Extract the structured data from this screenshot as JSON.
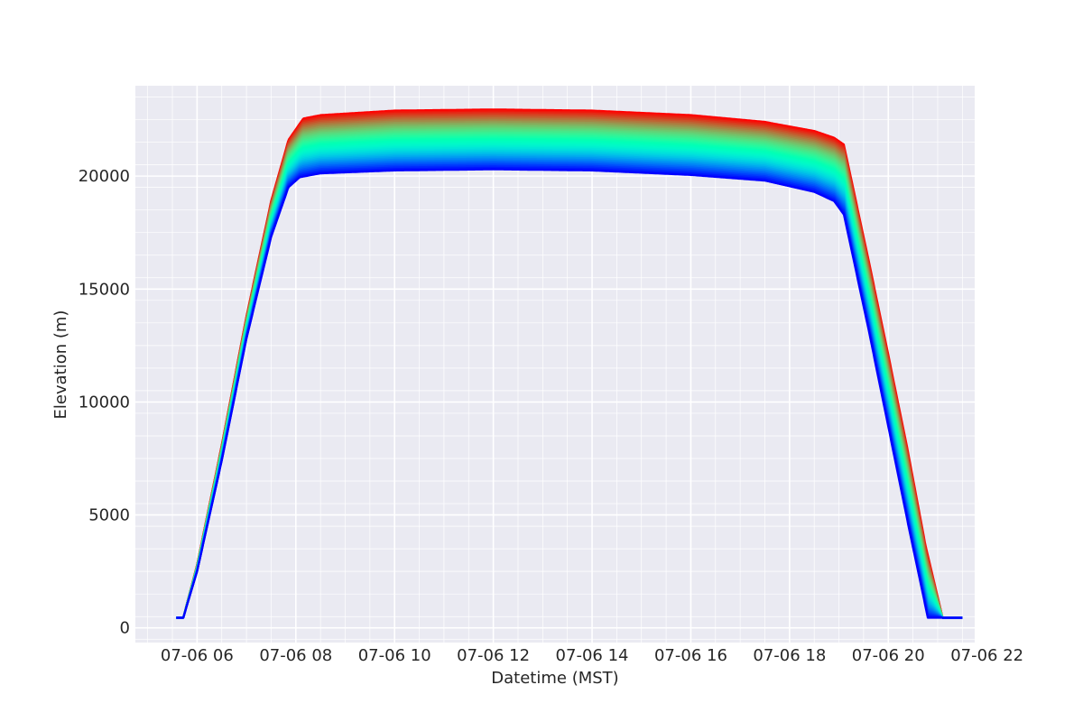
{
  "chart_data": {
    "type": "line",
    "title": "",
    "xlabel": "Datetime (MST)",
    "ylabel": "Elevation (m)",
    "x_unit": "hours (MST, 07-06)",
    "xlim": [
      4.75,
      21.75
    ],
    "ylim": [
      -650,
      24000
    ],
    "x_tick_values": [
      6,
      8,
      10,
      12,
      14,
      16,
      18,
      20,
      22
    ],
    "x_tick_labels": [
      "07-06 06",
      "07-06 08",
      "07-06 10",
      "07-06 12",
      "07-06 14",
      "07-06 16",
      "07-06 18",
      "07-06 20",
      "07-06 22"
    ],
    "y_tick_values": [
      0,
      5000,
      10000,
      15000,
      20000
    ],
    "y_tick_labels": [
      "0",
      "5000",
      "10000",
      "15000",
      "20000"
    ],
    "grid": true,
    "minor_grid": true,
    "legend": "none",
    "colormap": "rainbow",
    "background_color": "#eaeaf2",
    "series_count": 40,
    "band_edges": {
      "lowest_series": {
        "color": "#8000ff",
        "points": [
          [
            5.58,
            450
          ],
          [
            5.72,
            450
          ],
          [
            6.0,
            2500
          ],
          [
            6.5,
            7400
          ],
          [
            7.0,
            12800
          ],
          [
            7.5,
            17300
          ],
          [
            7.85,
            19500
          ],
          [
            8.08,
            19950
          ],
          [
            8.5,
            20120
          ],
          [
            10,
            20250
          ],
          [
            12,
            20300
          ],
          [
            14,
            20250
          ],
          [
            16,
            20050
          ],
          [
            17.5,
            19800
          ],
          [
            18.5,
            19300
          ],
          [
            18.9,
            18900
          ],
          [
            19.1,
            18300
          ],
          [
            19.6,
            13200
          ],
          [
            20.0,
            8900
          ],
          [
            20.4,
            4600
          ],
          [
            20.8,
            450
          ],
          [
            21.5,
            450
          ]
        ]
      },
      "highest_series": {
        "color": "#ff0000",
        "points": [
          [
            5.58,
            450
          ],
          [
            5.72,
            450
          ],
          [
            6.0,
            2800
          ],
          [
            6.5,
            8100
          ],
          [
            7.0,
            13800
          ],
          [
            7.5,
            18900
          ],
          [
            7.85,
            21600
          ],
          [
            8.15,
            22550
          ],
          [
            8.5,
            22700
          ],
          [
            10,
            22900
          ],
          [
            12,
            22950
          ],
          [
            14,
            22900
          ],
          [
            16,
            22700
          ],
          [
            17.5,
            22400
          ],
          [
            18.5,
            22000
          ],
          [
            18.9,
            21700
          ],
          [
            19.1,
            21400
          ],
          [
            19.6,
            16300
          ],
          [
            20.0,
            12100
          ],
          [
            20.4,
            7800
          ],
          [
            20.75,
            3700
          ],
          [
            21.1,
            450
          ],
          [
            21.5,
            450
          ]
        ]
      }
    }
  }
}
